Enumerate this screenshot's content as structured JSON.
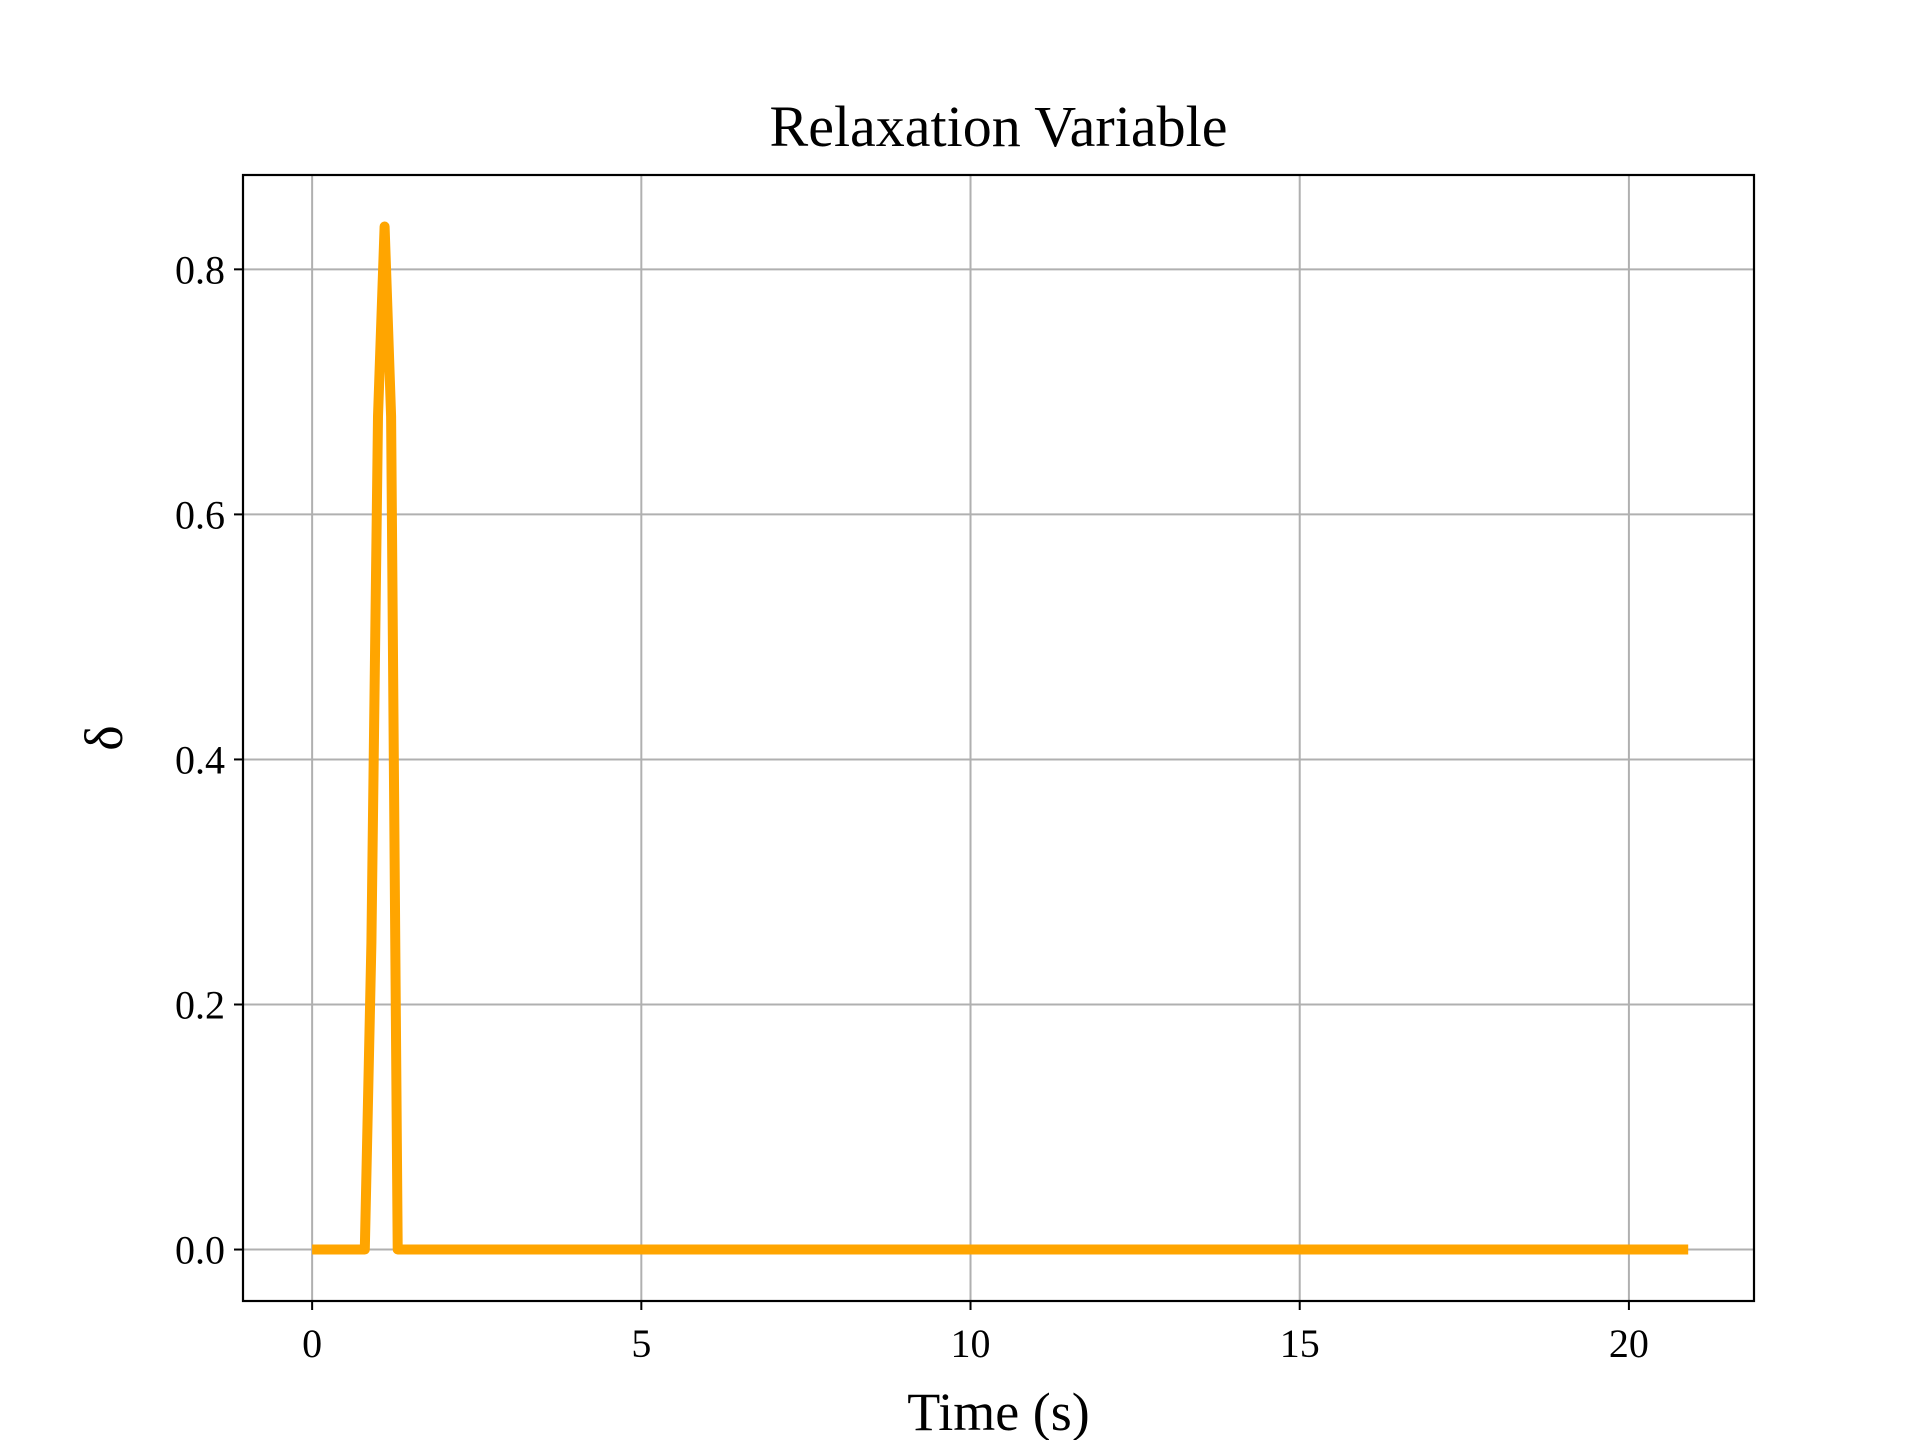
{
  "chart_data": {
    "type": "line",
    "title": "Relaxation Variable",
    "xlabel": "Time (s)",
    "ylabel": "δ",
    "xlim": [
      -1.05,
      21.9
    ],
    "ylim": [
      -0.042,
      0.877
    ],
    "xticks": [
      0,
      5,
      10,
      15,
      20
    ],
    "xtick_labels": [
      "0",
      "5",
      "10",
      "15",
      "20"
    ],
    "yticks": [
      0.0,
      0.2,
      0.4,
      0.6,
      0.8
    ],
    "ytick_labels": [
      "0.0",
      "0.2",
      "0.4",
      "0.6",
      "0.8"
    ],
    "grid": true,
    "legend": null,
    "series": [
      {
        "color": "#FFA500",
        "x": [
          0,
          0.2,
          0.4,
          0.6,
          0.8,
          0.9,
          1.0,
          1.1,
          1.2,
          1.3,
          1.4,
          1.6,
          2.0,
          3.0,
          5.0,
          10.0,
          15.0,
          20.0,
          20.9
        ],
        "y": [
          0.0,
          0.0,
          0.0,
          0.0,
          0.0,
          0.25,
          0.68,
          0.835,
          0.68,
          0.0,
          0.0,
          0.0,
          0.0,
          0.0,
          0.0,
          0.0,
          0.0,
          0.0,
          0.0
        ]
      }
    ]
  }
}
